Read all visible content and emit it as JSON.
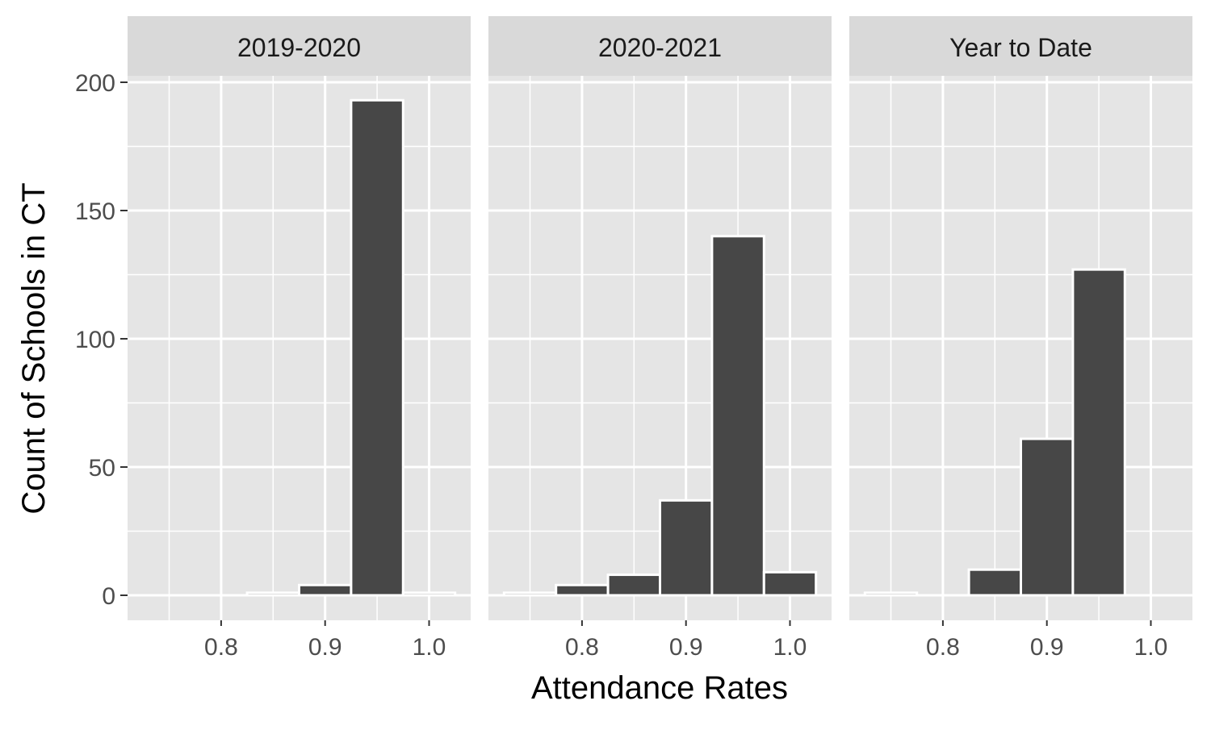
{
  "chart_data": {
    "type": "bar",
    "xlabel": "Attendance Rates",
    "ylabel": "Count of Schools in CT",
    "ylim": [
      -5,
      210
    ],
    "xlim": [
      0.71,
      1.04
    ],
    "y_ticks": [
      "0",
      "50",
      "100",
      "150",
      "200"
    ],
    "x_ticks": [
      "0.8",
      "0.9",
      "1.0"
    ],
    "bin_width": 0.05,
    "bin_centers": [
      0.75,
      0.8,
      0.85,
      0.9,
      0.95,
      1.0
    ],
    "grid": true,
    "colors": {
      "panel_bg": "#e5e5e5",
      "strip_bg": "#d9d9d9",
      "bar_fill": "#474747",
      "bar_outline": "#ffffff",
      "grid": "#ffffff"
    },
    "facets": [
      {
        "title": "2019-2020",
        "values": [
          0,
          0,
          1,
          4,
          193,
          1
        ]
      },
      {
        "title": "2020-2021",
        "values": [
          1,
          4,
          8,
          37,
          140,
          9
        ]
      },
      {
        "title": "Year to Date",
        "values": [
          1,
          0,
          10,
          61,
          127,
          0
        ]
      }
    ]
  }
}
